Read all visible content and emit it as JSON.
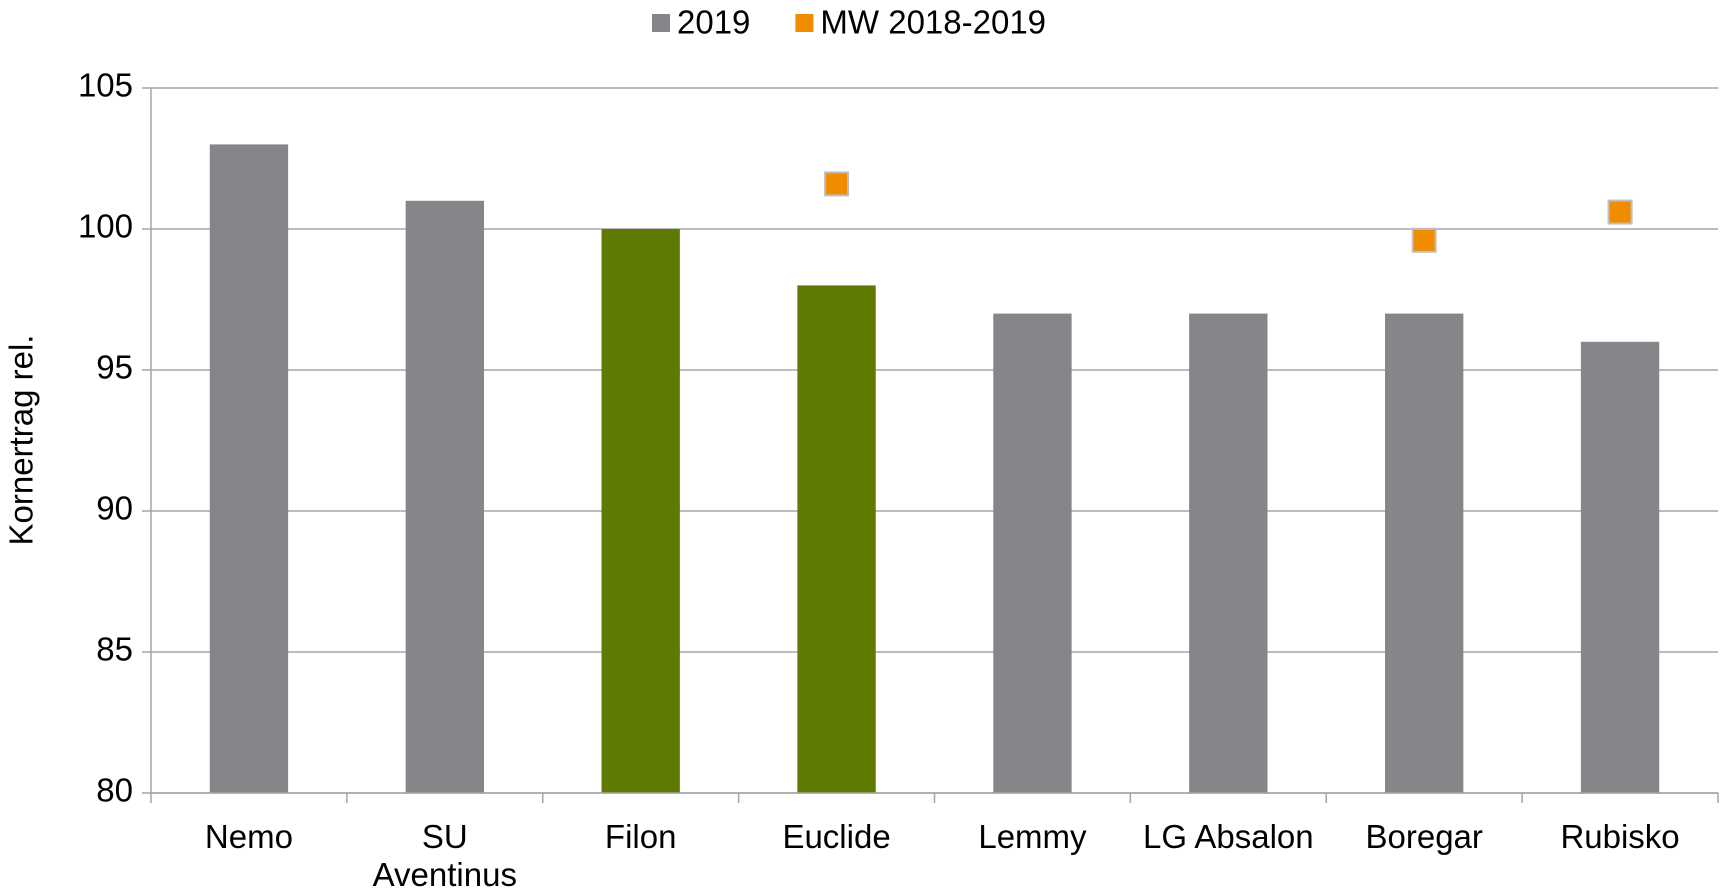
{
  "chart_data": {
    "type": "bar",
    "y_label": "Kornertrag rel.",
    "categories": [
      "Nemo",
      "SU Aventinus",
      "Filon",
      "Euclide",
      "Lemmy",
      "LG Absalon",
      "Boregar",
      "Rubisko"
    ],
    "series": [
      {
        "name": "2019",
        "type": "bar",
        "color": "#858689",
        "colors": [
          "#858689",
          "#858689",
          "#5e7a00",
          "#5e7a00",
          "#858689",
          "#858689",
          "#858689",
          "#858689"
        ],
        "values": [
          103,
          101,
          100,
          98,
          97,
          97,
          97,
          96
        ]
      },
      {
        "name": "MW 2018-2019",
        "type": "marker",
        "color": "#f08c00",
        "values": [
          null,
          null,
          null,
          101.6,
          null,
          null,
          99.6,
          100.6
        ]
      }
    ],
    "ylim": [
      80,
      105
    ],
    "yticks": [
      80,
      85,
      90,
      95,
      100,
      105
    ],
    "grid": true,
    "legend": "top"
  }
}
